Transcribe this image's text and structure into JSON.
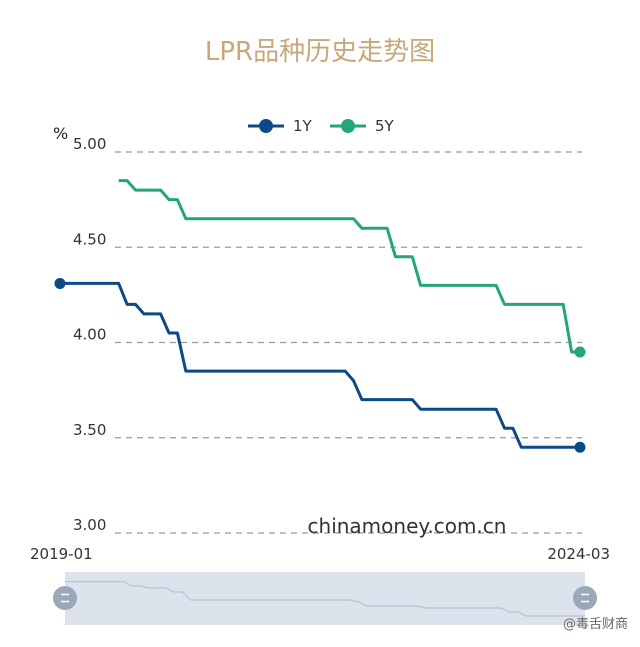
{
  "chart_data": {
    "type": "line",
    "title": "LPR品种历史走势图",
    "ylabel": "%",
    "ylim": [
      3.0,
      5.0
    ],
    "y_ticks": [
      "5.00",
      "4.50",
      "4.00",
      "3.50",
      "3.00"
    ],
    "grid": "horizontal-dashed",
    "legend": "top-center",
    "x_range_start": "2019-01",
    "x_range_end": "2024-03",
    "series": [
      {
        "name": "1Y",
        "color": "#0d4a85",
        "points": [
          [
            "2019-01",
            4.31
          ],
          [
            "2019-08",
            4.31
          ],
          [
            "2019-09",
            4.2
          ],
          [
            "2019-10",
            4.2
          ],
          [
            "2019-11",
            4.15
          ],
          [
            "2019-12",
            4.15
          ],
          [
            "2020-01",
            4.15
          ],
          [
            "2020-02",
            4.05
          ],
          [
            "2020-03",
            4.05
          ],
          [
            "2020-04",
            3.85
          ],
          [
            "2020-05",
            3.85
          ],
          [
            "2021-11",
            3.85
          ],
          [
            "2021-12",
            3.8
          ],
          [
            "2022-01",
            3.7
          ],
          [
            "2022-02",
            3.7
          ],
          [
            "2022-07",
            3.7
          ],
          [
            "2022-08",
            3.65
          ],
          [
            "2022-09",
            3.65
          ],
          [
            "2023-05",
            3.65
          ],
          [
            "2023-06",
            3.55
          ],
          [
            "2023-07",
            3.55
          ],
          [
            "2023-08",
            3.45
          ],
          [
            "2023-09",
            3.45
          ],
          [
            "2024-03",
            3.45
          ]
        ]
      },
      {
        "name": "5Y",
        "color": "#23a777",
        "points": [
          [
            "2019-08",
            4.85
          ],
          [
            "2019-09",
            4.85
          ],
          [
            "2019-10",
            4.8
          ],
          [
            "2019-11",
            4.8
          ],
          [
            "2019-12",
            4.8
          ],
          [
            "2020-01",
            4.8
          ],
          [
            "2020-02",
            4.75
          ],
          [
            "2020-03",
            4.75
          ],
          [
            "2020-04",
            4.65
          ],
          [
            "2020-05",
            4.65
          ],
          [
            "2021-11",
            4.65
          ],
          [
            "2021-12",
            4.65
          ],
          [
            "2022-01",
            4.6
          ],
          [
            "2022-02",
            4.6
          ],
          [
            "2022-04",
            4.6
          ],
          [
            "2022-05",
            4.45
          ],
          [
            "2022-06",
            4.45
          ],
          [
            "2022-07",
            4.45
          ],
          [
            "2022-08",
            4.3
          ],
          [
            "2022-09",
            4.3
          ],
          [
            "2023-05",
            4.3
          ],
          [
            "2023-06",
            4.2
          ],
          [
            "2023-07",
            4.2
          ],
          [
            "2024-01",
            4.2
          ],
          [
            "2024-02",
            3.95
          ],
          [
            "2024-03",
            3.95
          ]
        ]
      }
    ]
  },
  "watermark": "chinamoney.com.cn",
  "credit": "@毒舌财商",
  "colors": {
    "title": "#c8a77b",
    "grid": "#9a9a9a",
    "slider_bg": "#dde3ec",
    "slider_line": "#b9c2ce",
    "handle": "#9aa8ba"
  }
}
